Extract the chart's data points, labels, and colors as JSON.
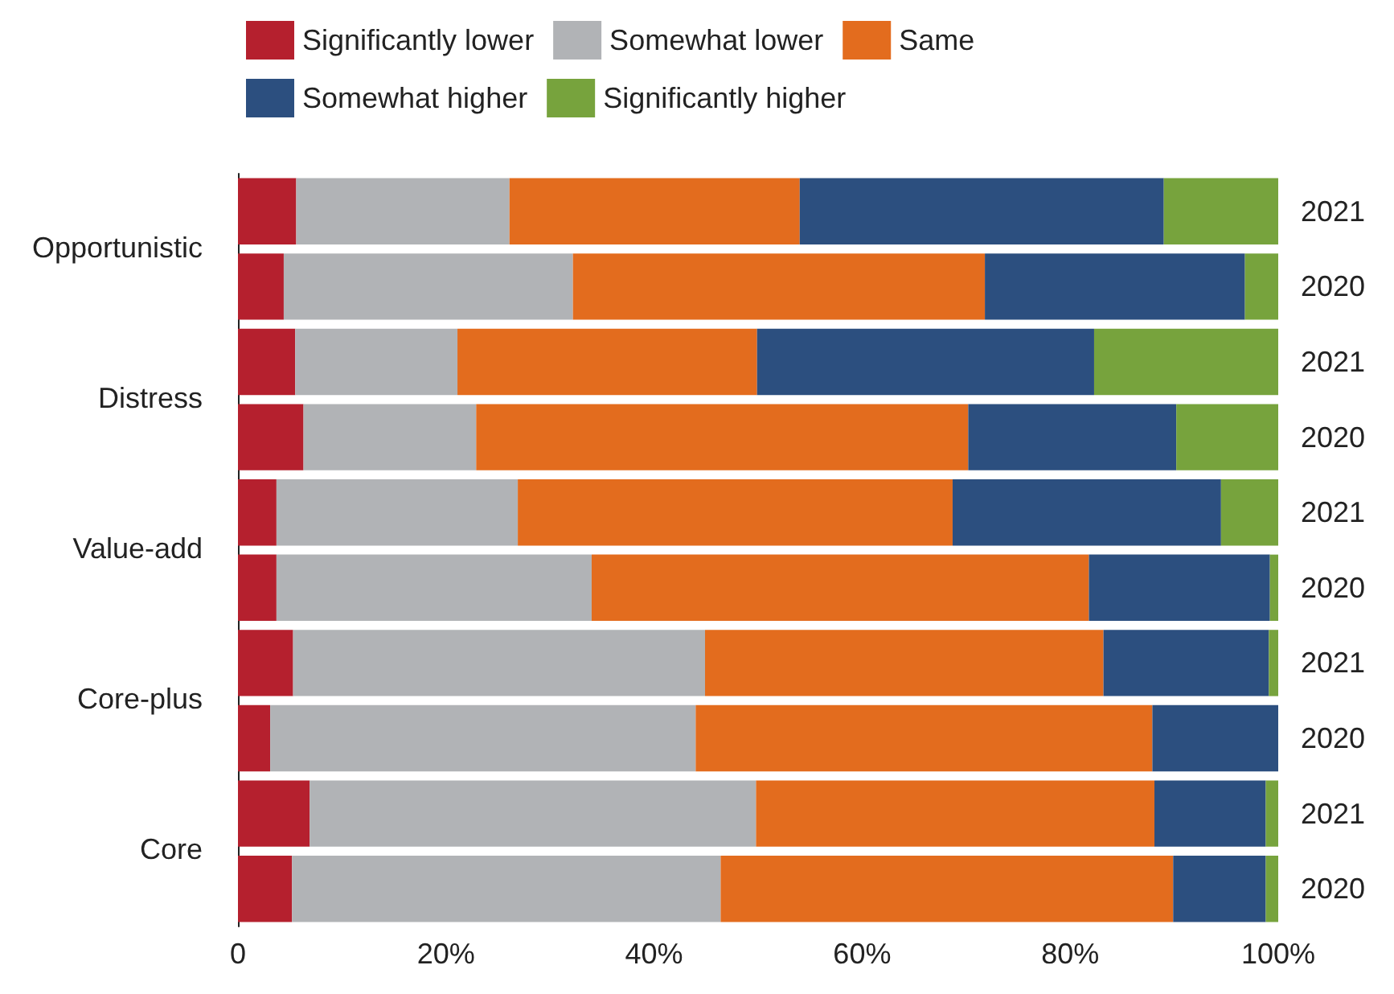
{
  "chart_data": {
    "type": "bar",
    "orientation": "horizontal",
    "stacked": true,
    "categories": [
      "2021",
      "2020",
      "2021",
      "2020",
      "2021",
      "2020",
      "2021",
      "2020",
      "2021",
      "2020"
    ],
    "annotations": [
      "Opportunistic",
      "Distress",
      "Value-add",
      "Core-plus",
      "Core"
    ],
    "series": [
      {
        "name": "Significantly lower",
        "color": "#b5202e",
        "values": [
          5.6,
          4.4,
          5.5,
          6.3,
          3.7,
          3.7,
          5.3,
          3.1,
          6.9,
          5.2
        ]
      },
      {
        "name": "Somewhat lower",
        "color": "#b1b3b6",
        "values": [
          20.5,
          27.8,
          15.6,
          16.6,
          23.2,
          30.3,
          39.6,
          40.9,
          42.9,
          41.2
        ]
      },
      {
        "name": "Same",
        "color": "#e36c1e",
        "values": [
          27.9,
          39.6,
          28.8,
          47.3,
          41.8,
          47.8,
          38.3,
          43.9,
          38.3,
          43.5
        ]
      },
      {
        "name": "Somewhat higher",
        "color": "#2c4f7f",
        "values": [
          35.0,
          25.0,
          32.4,
          20.0,
          25.8,
          17.4,
          15.9,
          12.1,
          10.7,
          8.9
        ]
      },
      {
        "name": "Significantly higher",
        "color": "#77a33d",
        "values": [
          11.0,
          3.2,
          17.7,
          9.8,
          5.5,
          0.8,
          0.9,
          0,
          1.2,
          1.2
        ]
      }
    ],
    "xlim": [
      0,
      100
    ],
    "xticks": [
      0,
      {
        "value": 20,
        "label": "20%"
      },
      {
        "value": 40,
        "label": "40%"
      },
      {
        "value": 60,
        "label": "60%"
      },
      {
        "value": 80,
        "label": "80%"
      },
      {
        "value": 100,
        "label": "100%"
      }
    ],
    "grid": false,
    "legend": "top left"
  }
}
